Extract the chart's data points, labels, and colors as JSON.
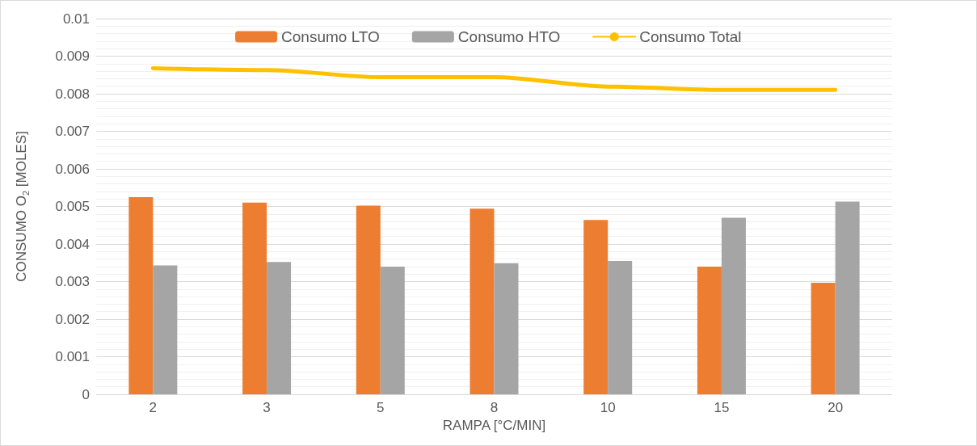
{
  "chart_data": {
    "type": "bar",
    "xlabel": "RAMPA [°C/MIN]",
    "ylabel": "CONSUMO O$_{2}$ [MOLES]",
    "categories": [
      "2",
      "3",
      "5",
      "8",
      "10",
      "15",
      "20"
    ],
    "series": [
      {
        "name": "Consumo LTO",
        "color": "#ed7d31",
        "values": [
          0.00525,
          0.0051,
          0.00502,
          0.00494,
          0.00464,
          0.0034,
          0.00297
        ]
      },
      {
        "name": "Consumo HTO",
        "color": "#a5a5a5",
        "values": [
          0.00343,
          0.00352,
          0.0034,
          0.00349,
          0.00355,
          0.0047,
          0.00513
        ]
      },
      {
        "name": "Consumo Total",
        "type": "line",
        "color": "#ffc000",
        "values": [
          0.00868,
          0.00863,
          0.00844,
          0.00844,
          0.00819,
          0.0081,
          0.0081
        ]
      }
    ],
    "ylim": [
      0,
      0.01
    ],
    "yticks": [
      0,
      0.001,
      0.002,
      0.003,
      0.004,
      0.005,
      0.006,
      0.007,
      0.008,
      0.009,
      0.01
    ],
    "grid": "y",
    "legend": "top",
    "marker": "none",
    "line_style": "solid"
  }
}
